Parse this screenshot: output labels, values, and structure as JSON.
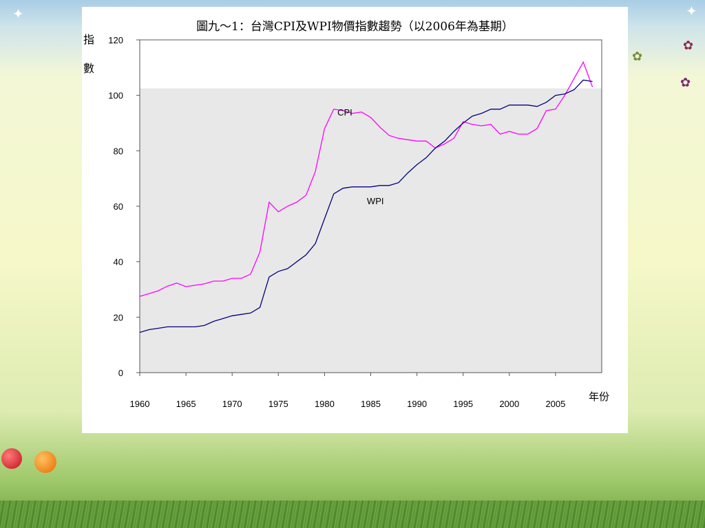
{
  "colors": {
    "cpi": "#ff00ff",
    "wpi": "#000080",
    "plot_bg": "#e8e8e8"
  },
  "chart_data": {
    "type": "line",
    "title": "圖九～1：台灣CPI及WPI物價指數趨勢（以2006年為基期）",
    "ylabel_chars": [
      "指",
      "數"
    ],
    "xlabel": "年份",
    "xlim": [
      1960,
      2010
    ],
    "ylim": [
      0,
      120
    ],
    "x_ticks": [
      1960,
      1965,
      1970,
      1975,
      1980,
      1985,
      1990,
      1995,
      2000,
      2005
    ],
    "y_ticks": [
      0,
      20,
      40,
      60,
      80,
      100,
      120
    ],
    "grid": false,
    "shaded_region": {
      "y_max": 102.5
    },
    "x": [
      1960,
      1961,
      1962,
      1963,
      1964,
      1965,
      1966,
      1967,
      1968,
      1969,
      1970,
      1971,
      1972,
      1973,
      1974,
      1975,
      1976,
      1977,
      1978,
      1979,
      1980,
      1981,
      1982,
      1983,
      1984,
      1985,
      1986,
      1987,
      1988,
      1989,
      1990,
      1991,
      1992,
      1993,
      1994,
      1995,
      1996,
      1997,
      1998,
      1999,
      2000,
      2001,
      2002,
      2003,
      2004,
      2005,
      2006,
      2007,
      2008,
      2009
    ],
    "series": [
      {
        "name": "CPI",
        "color_key": "cpi",
        "label_at": [
          1982.2,
          94
        ],
        "values": [
          27.5,
          28.5,
          29.5,
          31.2,
          32.3,
          31.0,
          31.5,
          32,
          33,
          33,
          34,
          34,
          35.5,
          43.5,
          61.5,
          58,
          60,
          61.5,
          64,
          72.5,
          88,
          95,
          94.5,
          93.5,
          94,
          92,
          88.5,
          85.5,
          84.5,
          84,
          83.5,
          83.5,
          81,
          82.5,
          84.5,
          90.5,
          89.5,
          89,
          89.5,
          86,
          87,
          86,
          86,
          88,
          94.5,
          95,
          100,
          106,
          112,
          103
        ]
      },
      {
        "name": "WPI",
        "color_key": "wpi",
        "label_at": [
          1985.5,
          62
        ],
        "values": [
          14.5,
          15.5,
          16,
          16.5,
          16.5,
          16.5,
          16.5,
          17,
          18.5,
          19.5,
          20.5,
          21,
          21.5,
          23.5,
          34.5,
          36.5,
          37.5,
          40,
          42.5,
          46.5,
          55.5,
          64.5,
          66.5,
          67,
          67,
          67,
          67.5,
          67.5,
          68.5,
          72,
          75,
          77.5,
          81,
          83.5,
          87,
          90,
          92.5,
          93.5,
          95,
          95,
          96.5,
          96.5,
          96.5,
          96,
          97.5,
          100,
          100.5,
          102,
          105.5,
          105
        ]
      }
    ]
  }
}
